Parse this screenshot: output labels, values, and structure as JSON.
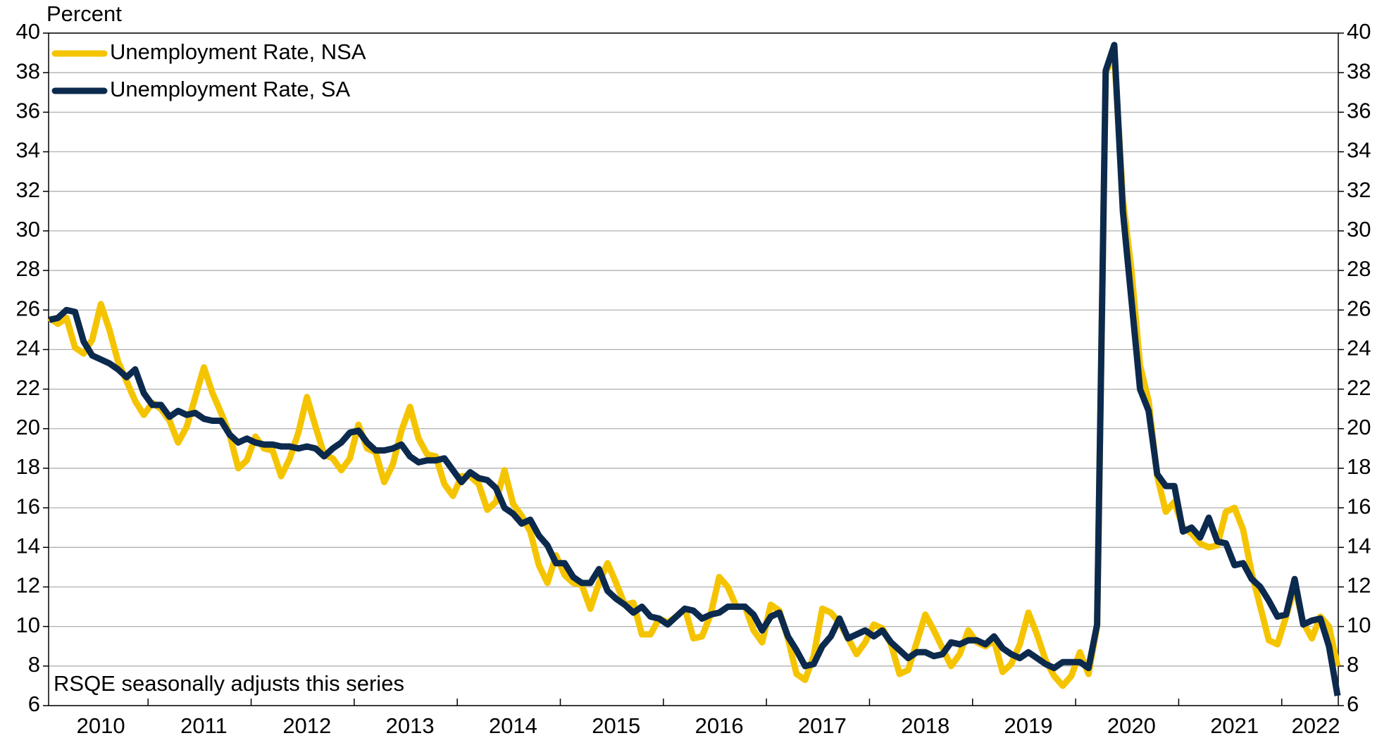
{
  "chart_data": {
    "type": "line",
    "y_label": "Percent",
    "annotation": "RSQE seasonally adjusts this series",
    "legend": "top-left",
    "grid": true,
    "ylim": [
      6,
      40
    ],
    "yticks": [
      6,
      8,
      10,
      12,
      14,
      16,
      18,
      20,
      22,
      24,
      26,
      28,
      30,
      32,
      34,
      36,
      38,
      40
    ],
    "y2lim": [
      6,
      40
    ],
    "y2ticks": [
      6,
      8,
      10,
      12,
      14,
      16,
      18,
      20,
      22,
      24,
      26,
      28,
      30,
      32,
      34,
      36,
      38,
      40
    ],
    "categories": [
      null,
      null,
      null,
      null,
      null,
      null,
      "2010",
      null,
      null,
      null,
      null,
      null,
      null,
      null,
      null,
      null,
      null,
      null,
      "2011",
      null,
      null,
      null,
      null,
      null,
      null,
      null,
      null,
      null,
      null,
      null,
      "2012",
      null,
      null,
      null,
      null,
      null,
      null,
      null,
      null,
      null,
      null,
      null,
      "2013",
      null,
      null,
      null,
      null,
      null,
      null,
      null,
      null,
      null,
      null,
      null,
      "2014",
      null,
      null,
      null,
      null,
      null,
      null,
      null,
      null,
      null,
      null,
      null,
      "2015",
      null,
      null,
      null,
      null,
      null,
      null,
      null,
      null,
      null,
      null,
      null,
      "2016",
      null,
      null,
      null,
      null,
      null,
      null,
      null,
      null,
      null,
      null,
      null,
      "2017",
      null,
      null,
      null,
      null,
      null,
      null,
      null,
      null,
      null,
      null,
      null,
      "2018",
      null,
      null,
      null,
      null,
      null,
      null,
      null,
      null,
      null,
      null,
      null,
      "2019",
      null,
      null,
      null,
      null,
      null,
      null,
      null,
      null,
      null,
      null,
      null,
      "2020",
      null,
      null,
      null,
      null,
      null,
      null,
      null,
      null,
      null,
      null,
      null,
      "2021",
      null,
      null,
      null,
      null,
      null,
      null,
      null,
      null,
      null,
      null,
      null,
      "2022"
    ],
    "series": [
      {
        "name": "Unemployment Rate, NSA",
        "color": "#f5c400",
        "values": [
          25.6,
          25.3,
          25.6,
          24.1,
          23.8,
          24.5,
          26.3,
          25.0,
          23.4,
          22.4,
          21.4,
          20.7,
          21.3,
          21.0,
          20.4,
          19.3,
          20.1,
          21.6,
          23.1,
          21.8,
          20.8,
          19.7,
          18.0,
          18.4,
          19.6,
          19.0,
          18.9,
          17.6,
          18.5,
          19.8,
          21.6,
          20.1,
          18.7,
          18.5,
          17.9,
          18.5,
          20.2,
          19.0,
          18.8,
          17.3,
          18.2,
          19.9,
          21.1,
          19.5,
          18.7,
          18.6,
          17.2,
          16.6,
          17.6,
          17.6,
          17.2,
          15.9,
          16.3,
          17.9,
          16.2,
          15.6,
          14.8,
          13.1,
          12.2,
          13.6,
          12.6,
          12.2,
          12.1,
          10.9,
          12.2,
          13.2,
          12.2,
          11.1,
          11.2,
          9.6,
          9.6,
          10.4,
          10.2,
          10.5,
          10.9,
          9.4,
          9.5,
          10.6,
          12.5,
          12.0,
          11.0,
          11.0,
          9.8,
          9.2,
          11.1,
          10.8,
          9.4,
          7.6,
          7.3,
          8.5,
          10.9,
          10.7,
          10.2,
          9.4,
          8.6,
          9.2,
          10.1,
          9.9,
          9.1,
          7.6,
          7.8,
          9.2,
          10.6,
          9.8,
          8.9,
          8.0,
          8.6,
          9.8,
          9.2,
          9.0,
          9.3,
          7.7,
          8.1,
          9.1,
          10.7,
          9.6,
          8.3,
          7.5,
          7.0,
          7.5,
          8.7,
          7.6,
          10.0,
          38.0,
          38.9,
          31.6,
          28.0,
          23.2,
          21.4,
          17.6,
          15.8,
          16.3,
          15.0,
          14.7,
          14.2,
          14.0,
          14.1,
          15.8,
          16.0,
          14.9,
          12.7,
          11.0,
          9.3,
          9.1,
          10.5,
          12.0,
          10.2,
          9.4,
          10.5,
          10.0,
          8.0
        ]
      },
      {
        "name": "Unemployment Rate, SA",
        "color": "#0c2a4d",
        "values": [
          25.5,
          25.6,
          26.0,
          25.9,
          24.4,
          23.7,
          23.5,
          23.3,
          23.0,
          22.6,
          23.0,
          21.8,
          21.2,
          21.2,
          20.6,
          20.9,
          20.7,
          20.8,
          20.5,
          20.4,
          20.4,
          19.7,
          19.3,
          19.5,
          19.3,
          19.2,
          19.2,
          19.1,
          19.1,
          19.0,
          19.1,
          19.0,
          18.6,
          19.0,
          19.3,
          19.8,
          19.9,
          19.3,
          18.9,
          18.9,
          19.0,
          19.2,
          18.6,
          18.3,
          18.4,
          18.4,
          18.5,
          17.9,
          17.3,
          17.8,
          17.5,
          17.4,
          17.0,
          16.0,
          15.7,
          15.2,
          15.4,
          14.6,
          14.1,
          13.2,
          13.2,
          12.5,
          12.2,
          12.2,
          12.9,
          11.8,
          11.4,
          11.1,
          10.7,
          11.0,
          10.5,
          10.4,
          10.1,
          10.5,
          10.9,
          10.8,
          10.4,
          10.6,
          10.7,
          11.0,
          11.0,
          11.0,
          10.6,
          9.8,
          10.5,
          10.7,
          9.5,
          8.8,
          8.0,
          8.1,
          9.0,
          9.5,
          10.4,
          9.4,
          9.6,
          9.8,
          9.5,
          9.8,
          9.2,
          8.8,
          8.4,
          8.7,
          8.7,
          8.5,
          8.6,
          9.2,
          9.1,
          9.3,
          9.3,
          9.1,
          9.5,
          8.9,
          8.6,
          8.4,
          8.7,
          8.4,
          8.1,
          7.9,
          8.2,
          8.2,
          8.2,
          7.9,
          10.1,
          38.1,
          39.4,
          31.0,
          26.5,
          22.0,
          20.9,
          17.7,
          17.1,
          17.1,
          14.8,
          15.0,
          14.5,
          15.5,
          14.3,
          14.2,
          13.1,
          13.2,
          12.4,
          12.0,
          11.3,
          10.5,
          10.6,
          12.4,
          10.1,
          10.3,
          10.4,
          9.0,
          6.5
        ]
      }
    ]
  }
}
